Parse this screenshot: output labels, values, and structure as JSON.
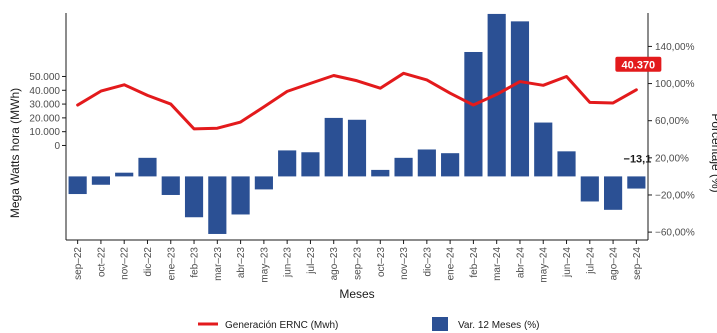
{
  "colors": {
    "line": "#e31a1c",
    "bar": "#2b5094",
    "axis": "#1a1a1a",
    "label_bg": "#e31a1c"
  },
  "chart_data": {
    "type": "bar+line",
    "xlabel": "Meses",
    "ylabel_left": "Mega Watts hora (MWh)",
    "ylabel_right": "Porcentaje (%)",
    "categories": [
      "sep–22",
      "oct–22",
      "nov–22",
      "dic–22",
      "ene–23",
      "feb–23",
      "mar–23",
      "abr–23",
      "may–23",
      "jun–23",
      "jul–23",
      "ago–23",
      "sep–23",
      "oct–23",
      "nov–23",
      "dic–23",
      "ene–24",
      "feb–24",
      "mar–24",
      "abr–24",
      "may–24",
      "jun–24",
      "jul–24",
      "ago–24",
      "sep–24"
    ],
    "left_ticks": [
      {
        "v": 0,
        "label": "0"
      },
      {
        "v": 10000,
        "label": "10.000"
      },
      {
        "v": 20000,
        "label": "20.000"
      },
      {
        "v": 30000,
        "label": "30.000"
      },
      {
        "v": 40000,
        "label": "40.000"
      },
      {
        "v": 50000,
        "label": "50.000"
      }
    ],
    "right_ticks": [
      {
        "v": -60,
        "label": "−60,00%"
      },
      {
        "v": -20,
        "label": "−20,00%"
      },
      {
        "v": 20,
        "label": "20,00%"
      },
      {
        "v": 60,
        "label": "60,00%"
      },
      {
        "v": 100,
        "label": "100,00%"
      },
      {
        "v": 140,
        "label": "140,00%"
      }
    ],
    "left_range": [
      -68500,
      96000
    ],
    "right_range": [
      -68.5,
      176
    ],
    "series": [
      {
        "name": "Generación ERNC (Mwh)",
        "type": "line",
        "axis": "left",
        "values": [
          29300,
          39400,
          44000,
          36300,
          30000,
          12000,
          12500,
          17000,
          28000,
          39200,
          45000,
          50700,
          46900,
          41500,
          52300,
          47500,
          37900,
          29300,
          37000,
          46300,
          43600,
          50000,
          31200,
          30800,
          40370
        ]
      },
      {
        "name": "Var. 12 Meses (%)",
        "type": "bar",
        "axis": "right",
        "values": [
          -19,
          -9,
          4,
          20,
          -20,
          -44,
          -62,
          -41,
          -14,
          28,
          26,
          63,
          61,
          7,
          20,
          29,
          25,
          134,
          175,
          167,
          58,
          27,
          -27,
          -36,
          -13.1
        ]
      }
    ],
    "annotations": {
      "last_line_value": "40.370",
      "last_bar_value": "−13,1"
    },
    "legend_position": "bottom",
    "grid": false
  }
}
